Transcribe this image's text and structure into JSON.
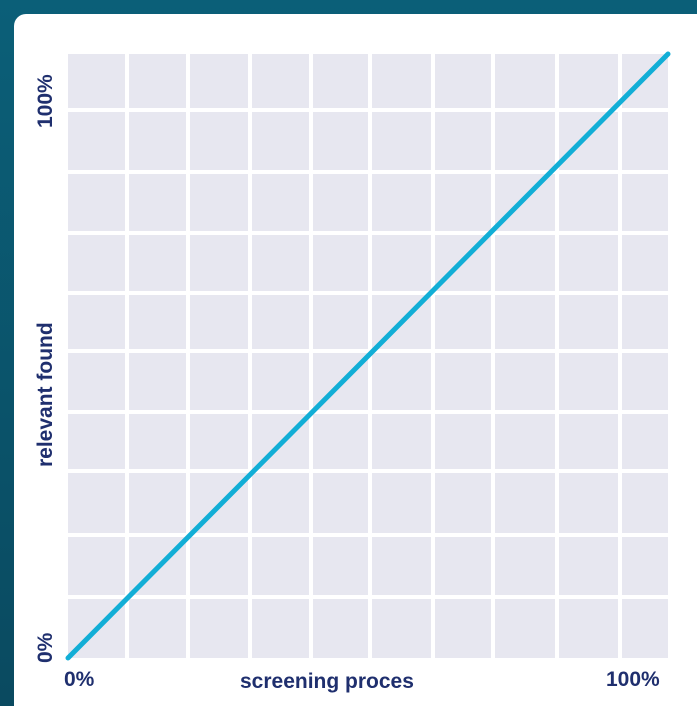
{
  "chart_data": {
    "type": "line",
    "xlabel": "screening proces",
    "ylabel": "relevant found",
    "x_tick_labels": {
      "min": "0%",
      "max": "100%"
    },
    "y_tick_labels": {
      "min": "0%",
      "max": "100%"
    },
    "xlim": [
      0,
      100
    ],
    "ylim": [
      0,
      100
    ],
    "grid": true,
    "series": [
      {
        "x": [
          0,
          100
        ],
        "y": [
          0,
          100
        ]
      }
    ]
  },
  "colors": {
    "frame": "#0b5f78",
    "plot_bg": "#e7e7f0",
    "grid": "#ffffff",
    "line": "#12aed6",
    "text": "#1f2f6e"
  }
}
